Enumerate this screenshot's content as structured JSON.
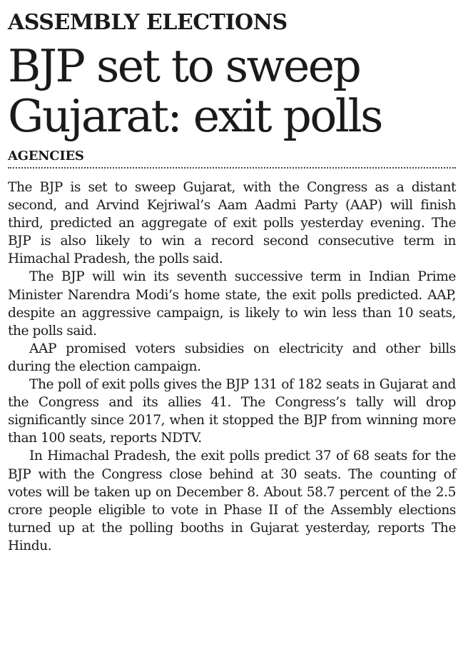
{
  "article": {
    "kicker": "ASSEMBLY ELECTIONS",
    "headline_line1": "BJP set to sweep",
    "headline_line2": "Gujarat: exit polls",
    "byline": "AGENCIES",
    "paragraphs": [
      "The BJP is set to sweep Gujarat, with the Congress as a distant second, and Arvind Kejriwal’s Aam Aadmi Party (AAP) will finish third, predicted an aggregate of exit polls yesterday evening. The BJP is also likely to win a record second consecutive term in Himachal Pradesh, the polls said.",
      "The BJP will win its seventh successive term in Indian Prime Minister Narendra Modi’s home state, the exit polls predicted. AAP, despite an aggressive campaign, is likely to win less than 10 seats, the polls said.",
      "AAP promised voters subsidies on electricity and other bills during the election campaign.",
      "The poll of exit polls gives the BJP 131 of 182 seats in Gujarat and the Congress and its allies 41. The Congress’s tally will drop significantly since 2017, when it stopped the BJP from winning more than 100 seats, reports NDTV.",
      "In Himachal Pradesh, the exit polls predict 37 of 68 seats for the BJP with the Congress close behind at 30 seats. The counting of votes will be taken up on December 8. About 58.7 percent of the 2.5 crore people eligible to vote in Phase II of the Assembly elections turned up at the polling booths in Gujarat yesterday, reports The Hindu."
    ]
  }
}
